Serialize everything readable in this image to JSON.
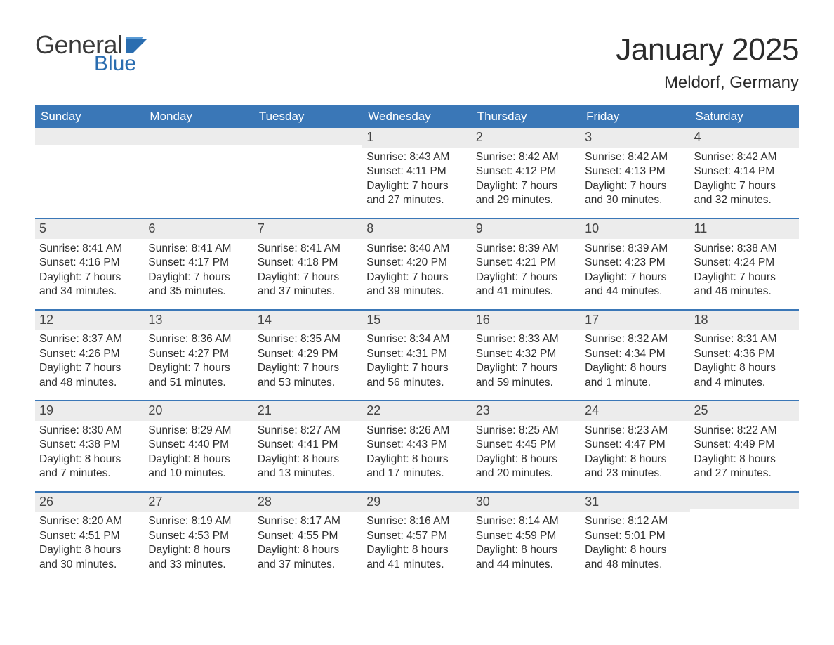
{
  "brand": {
    "line1": "General",
    "line2": "Blue"
  },
  "title": "January 2025",
  "location": "Meldorf, Germany",
  "colors": {
    "header_blue": "#3a77b7",
    "accent_blue": "#2a6db0",
    "row_bg": "#ececec",
    "text_dark": "#333333",
    "border_blue": "#3a77b7",
    "page_bg": "#ffffff"
  },
  "weekdays": [
    "Sunday",
    "Monday",
    "Tuesday",
    "Wednesday",
    "Thursday",
    "Friday",
    "Saturday"
  ],
  "weeks": [
    [
      {
        "blank": true
      },
      {
        "blank": true
      },
      {
        "blank": true
      },
      {
        "num": "1",
        "sunrise": "Sunrise: 8:43 AM",
        "sunset": "Sunset: 4:11 PM",
        "daylight1": "Daylight: 7 hours",
        "daylight2": "and 27 minutes."
      },
      {
        "num": "2",
        "sunrise": "Sunrise: 8:42 AM",
        "sunset": "Sunset: 4:12 PM",
        "daylight1": "Daylight: 7 hours",
        "daylight2": "and 29 minutes."
      },
      {
        "num": "3",
        "sunrise": "Sunrise: 8:42 AM",
        "sunset": "Sunset: 4:13 PM",
        "daylight1": "Daylight: 7 hours",
        "daylight2": "and 30 minutes."
      },
      {
        "num": "4",
        "sunrise": "Sunrise: 8:42 AM",
        "sunset": "Sunset: 4:14 PM",
        "daylight1": "Daylight: 7 hours",
        "daylight2": "and 32 minutes."
      }
    ],
    [
      {
        "num": "5",
        "sunrise": "Sunrise: 8:41 AM",
        "sunset": "Sunset: 4:16 PM",
        "daylight1": "Daylight: 7 hours",
        "daylight2": "and 34 minutes."
      },
      {
        "num": "6",
        "sunrise": "Sunrise: 8:41 AM",
        "sunset": "Sunset: 4:17 PM",
        "daylight1": "Daylight: 7 hours",
        "daylight2": "and 35 minutes."
      },
      {
        "num": "7",
        "sunrise": "Sunrise: 8:41 AM",
        "sunset": "Sunset: 4:18 PM",
        "daylight1": "Daylight: 7 hours",
        "daylight2": "and 37 minutes."
      },
      {
        "num": "8",
        "sunrise": "Sunrise: 8:40 AM",
        "sunset": "Sunset: 4:20 PM",
        "daylight1": "Daylight: 7 hours",
        "daylight2": "and 39 minutes."
      },
      {
        "num": "9",
        "sunrise": "Sunrise: 8:39 AM",
        "sunset": "Sunset: 4:21 PM",
        "daylight1": "Daylight: 7 hours",
        "daylight2": "and 41 minutes."
      },
      {
        "num": "10",
        "sunrise": "Sunrise: 8:39 AM",
        "sunset": "Sunset: 4:23 PM",
        "daylight1": "Daylight: 7 hours",
        "daylight2": "and 44 minutes."
      },
      {
        "num": "11",
        "sunrise": "Sunrise: 8:38 AM",
        "sunset": "Sunset: 4:24 PM",
        "daylight1": "Daylight: 7 hours",
        "daylight2": "and 46 minutes."
      }
    ],
    [
      {
        "num": "12",
        "sunrise": "Sunrise: 8:37 AM",
        "sunset": "Sunset: 4:26 PM",
        "daylight1": "Daylight: 7 hours",
        "daylight2": "and 48 minutes."
      },
      {
        "num": "13",
        "sunrise": "Sunrise: 8:36 AM",
        "sunset": "Sunset: 4:27 PM",
        "daylight1": "Daylight: 7 hours",
        "daylight2": "and 51 minutes."
      },
      {
        "num": "14",
        "sunrise": "Sunrise: 8:35 AM",
        "sunset": "Sunset: 4:29 PM",
        "daylight1": "Daylight: 7 hours",
        "daylight2": "and 53 minutes."
      },
      {
        "num": "15",
        "sunrise": "Sunrise: 8:34 AM",
        "sunset": "Sunset: 4:31 PM",
        "daylight1": "Daylight: 7 hours",
        "daylight2": "and 56 minutes."
      },
      {
        "num": "16",
        "sunrise": "Sunrise: 8:33 AM",
        "sunset": "Sunset: 4:32 PM",
        "daylight1": "Daylight: 7 hours",
        "daylight2": "and 59 minutes."
      },
      {
        "num": "17",
        "sunrise": "Sunrise: 8:32 AM",
        "sunset": "Sunset: 4:34 PM",
        "daylight1": "Daylight: 8 hours",
        "daylight2": "and 1 minute."
      },
      {
        "num": "18",
        "sunrise": "Sunrise: 8:31 AM",
        "sunset": "Sunset: 4:36 PM",
        "daylight1": "Daylight: 8 hours",
        "daylight2": "and 4 minutes."
      }
    ],
    [
      {
        "num": "19",
        "sunrise": "Sunrise: 8:30 AM",
        "sunset": "Sunset: 4:38 PM",
        "daylight1": "Daylight: 8 hours",
        "daylight2": "and 7 minutes."
      },
      {
        "num": "20",
        "sunrise": "Sunrise: 8:29 AM",
        "sunset": "Sunset: 4:40 PM",
        "daylight1": "Daylight: 8 hours",
        "daylight2": "and 10 minutes."
      },
      {
        "num": "21",
        "sunrise": "Sunrise: 8:27 AM",
        "sunset": "Sunset: 4:41 PM",
        "daylight1": "Daylight: 8 hours",
        "daylight2": "and 13 minutes."
      },
      {
        "num": "22",
        "sunrise": "Sunrise: 8:26 AM",
        "sunset": "Sunset: 4:43 PM",
        "daylight1": "Daylight: 8 hours",
        "daylight2": "and 17 minutes."
      },
      {
        "num": "23",
        "sunrise": "Sunrise: 8:25 AM",
        "sunset": "Sunset: 4:45 PM",
        "daylight1": "Daylight: 8 hours",
        "daylight2": "and 20 minutes."
      },
      {
        "num": "24",
        "sunrise": "Sunrise: 8:23 AM",
        "sunset": "Sunset: 4:47 PM",
        "daylight1": "Daylight: 8 hours",
        "daylight2": "and 23 minutes."
      },
      {
        "num": "25",
        "sunrise": "Sunrise: 8:22 AM",
        "sunset": "Sunset: 4:49 PM",
        "daylight1": "Daylight: 8 hours",
        "daylight2": "and 27 minutes."
      }
    ],
    [
      {
        "num": "26",
        "sunrise": "Sunrise: 8:20 AM",
        "sunset": "Sunset: 4:51 PM",
        "daylight1": "Daylight: 8 hours",
        "daylight2": "and 30 minutes."
      },
      {
        "num": "27",
        "sunrise": "Sunrise: 8:19 AM",
        "sunset": "Sunset: 4:53 PM",
        "daylight1": "Daylight: 8 hours",
        "daylight2": "and 33 minutes."
      },
      {
        "num": "28",
        "sunrise": "Sunrise: 8:17 AM",
        "sunset": "Sunset: 4:55 PM",
        "daylight1": "Daylight: 8 hours",
        "daylight2": "and 37 minutes."
      },
      {
        "num": "29",
        "sunrise": "Sunrise: 8:16 AM",
        "sunset": "Sunset: 4:57 PM",
        "daylight1": "Daylight: 8 hours",
        "daylight2": "and 41 minutes."
      },
      {
        "num": "30",
        "sunrise": "Sunrise: 8:14 AM",
        "sunset": "Sunset: 4:59 PM",
        "daylight1": "Daylight: 8 hours",
        "daylight2": "and 44 minutes."
      },
      {
        "num": "31",
        "sunrise": "Sunrise: 8:12 AM",
        "sunset": "Sunset: 5:01 PM",
        "daylight1": "Daylight: 8 hours",
        "daylight2": "and 48 minutes."
      },
      {
        "blank": true
      }
    ]
  ]
}
